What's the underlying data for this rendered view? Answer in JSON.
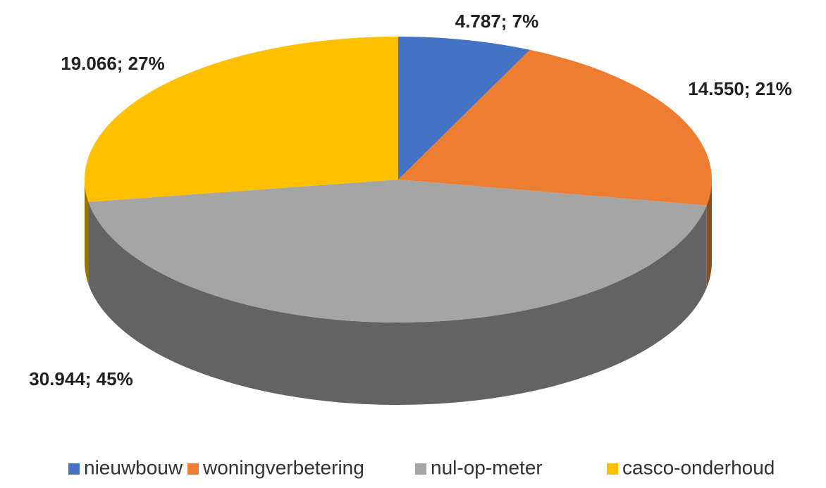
{
  "chart_data": {
    "type": "pie",
    "categories": [
      "nieuwbouw",
      "woningverbetering",
      "nul-op-meter",
      "casco-onderhoud"
    ],
    "values": [
      4787,
      14550,
      30944,
      19066
    ],
    "value_labels": [
      "4.787; 7%",
      "14.550; 21%",
      "30.944; 45%",
      "19.066; 27%"
    ],
    "colors": [
      "#4472c4",
      "#ed7d31",
      "#a5a5a5",
      "#ffc000"
    ],
    "legend": "bottom"
  }
}
